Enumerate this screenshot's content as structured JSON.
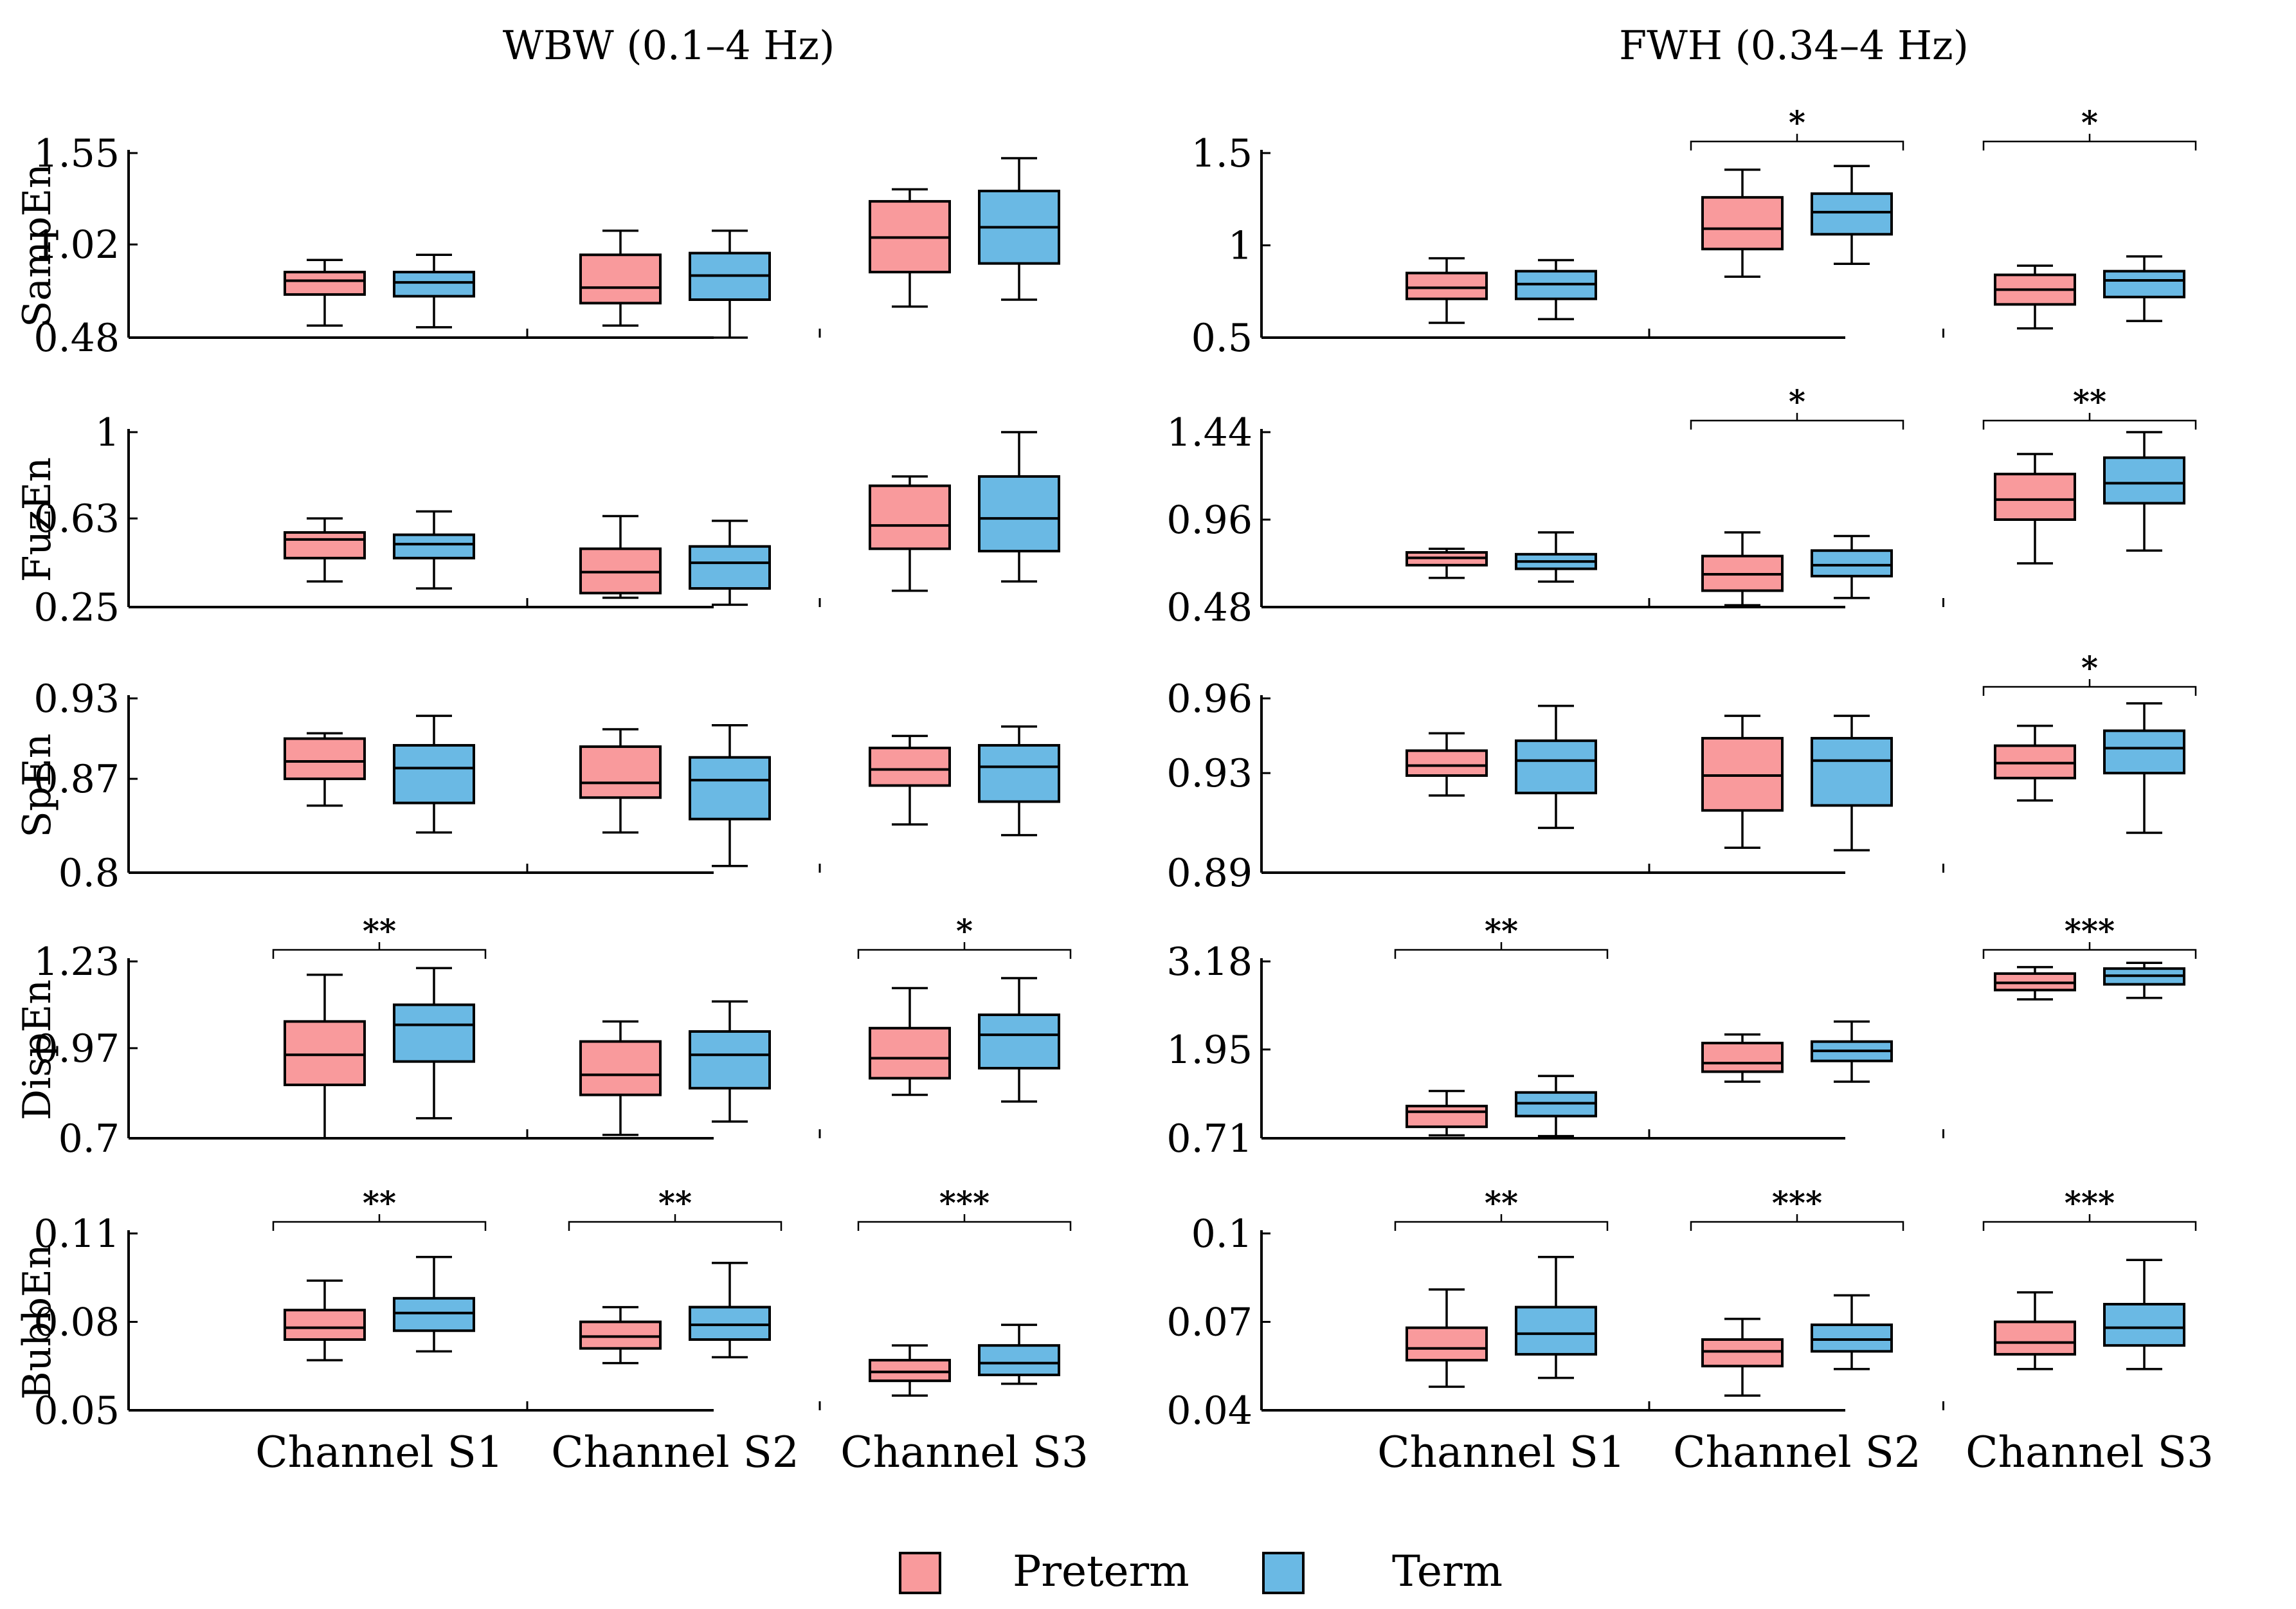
{
  "figure": {
    "column_titles": [
      "WBW (0.1–4 Hz)",
      "FWH (0.34–4 Hz)"
    ],
    "x_categories": [
      "Channel S1",
      "Channel S2",
      "Channel S3"
    ],
    "legend": [
      {
        "label": "Preterm",
        "color": "#f99a9c"
      },
      {
        "label": "Term",
        "color": "#6ab9e4"
      }
    ]
  },
  "chart_data": [
    {
      "type": "box",
      "column": "WBW (0.1–4 Hz)",
      "ylabel": "SampEn",
      "yticks": [
        "0.48",
        "1.02",
        "1.55"
      ],
      "ylim": [
        0.48,
        1.55
      ],
      "categories": [
        "Channel S1",
        "Channel S2",
        "Channel S3"
      ],
      "series": [
        {
          "name": "Preterm",
          "boxes": [
            [
              0.55,
              0.73,
              0.81,
              0.86,
              0.93
            ],
            [
              0.55,
              0.68,
              0.77,
              0.96,
              1.1
            ],
            [
              0.66,
              0.86,
              1.06,
              1.27,
              1.34
            ]
          ]
        },
        {
          "name": "Term",
          "boxes": [
            [
              0.54,
              0.72,
              0.8,
              0.86,
              0.96
            ],
            [
              0.48,
              0.7,
              0.84,
              0.97,
              1.1
            ],
            [
              0.7,
              0.91,
              1.12,
              1.33,
              1.52
            ]
          ]
        }
      ],
      "significance": [
        "",
        "",
        ""
      ]
    },
    {
      "type": "box",
      "column": "WBW (0.1–4 Hz)",
      "ylabel": "FuzEn",
      "yticks": [
        "0.25",
        "0.63",
        "1"
      ],
      "ylim": [
        0.25,
        1.0
      ],
      "categories": [
        "Channel S1",
        "Channel S2",
        "Channel S3"
      ],
      "series": [
        {
          "name": "Preterm",
          "boxes": [
            [
              0.36,
              0.46,
              0.54,
              0.57,
              0.63
            ],
            [
              0.29,
              0.31,
              0.4,
              0.5,
              0.64
            ],
            [
              0.32,
              0.5,
              0.6,
              0.77,
              0.81
            ]
          ]
        },
        {
          "name": "Term",
          "boxes": [
            [
              0.33,
              0.46,
              0.52,
              0.56,
              0.66
            ],
            [
              0.26,
              0.33,
              0.44,
              0.51,
              0.62
            ],
            [
              0.36,
              0.49,
              0.63,
              0.81,
              1.0
            ]
          ]
        }
      ],
      "significance": [
        "",
        "",
        ""
      ]
    },
    {
      "type": "box",
      "column": "WBW (0.1–4 Hz)",
      "ylabel": "SpEn",
      "yticks": [
        "0.8",
        "0.87",
        "0.93"
      ],
      "ylim": [
        0.8,
        0.93
      ],
      "categories": [
        "Channel S1",
        "Channel S2",
        "Channel S3"
      ],
      "series": [
        {
          "name": "Preterm",
          "boxes": [
            [
              0.85,
              0.87,
              0.883,
              0.9,
              0.904
            ],
            [
              0.83,
              0.856,
              0.867,
              0.894,
              0.907
            ],
            [
              0.836,
              0.865,
              0.877,
              0.893,
              0.902
            ]
          ]
        },
        {
          "name": "Term",
          "boxes": [
            [
              0.83,
              0.852,
              0.878,
              0.895,
              0.917
            ],
            [
              0.805,
              0.84,
              0.869,
              0.886,
              0.91
            ],
            [
              0.828,
              0.853,
              0.879,
              0.895,
              0.909
            ]
          ]
        }
      ],
      "significance": [
        "",
        "",
        ""
      ]
    },
    {
      "type": "box",
      "column": "WBW (0.1–4 Hz)",
      "ylabel": "DispEn",
      "yticks": [
        "0.7",
        "0.97",
        "1.23"
      ],
      "ylim": [
        0.7,
        1.23
      ],
      "categories": [
        "Channel S1",
        "Channel S2",
        "Channel S3"
      ],
      "series": [
        {
          "name": "Preterm",
          "boxes": [
            [
              0.7,
              0.86,
              0.95,
              1.05,
              1.19
            ],
            [
              0.71,
              0.83,
              0.89,
              0.99,
              1.05
            ],
            [
              0.83,
              0.88,
              0.94,
              1.03,
              1.15
            ]
          ]
        },
        {
          "name": "Term",
          "boxes": [
            [
              0.76,
              0.93,
              1.04,
              1.1,
              1.21
            ],
            [
              0.75,
              0.85,
              0.95,
              1.02,
              1.11
            ],
            [
              0.81,
              0.91,
              1.01,
              1.07,
              1.18
            ]
          ]
        }
      ],
      "significance": [
        "**",
        "",
        "*"
      ]
    },
    {
      "type": "box",
      "column": "WBW (0.1–4 Hz)",
      "ylabel": "BubbEn",
      "yticks": [
        "0.05",
        "0.08",
        "0.11"
      ],
      "ylim": [
        0.05,
        0.11
      ],
      "categories": [
        "Channel S1",
        "Channel S2",
        "Channel S3"
      ],
      "series": [
        {
          "name": "Preterm",
          "boxes": [
            [
              0.067,
              0.074,
              0.078,
              0.084,
              0.094
            ],
            [
              0.066,
              0.071,
              0.075,
              0.08,
              0.085
            ],
            [
              0.055,
              0.06,
              0.063,
              0.067,
              0.072
            ]
          ]
        },
        {
          "name": "Term",
          "boxes": [
            [
              0.07,
              0.077,
              0.083,
              0.088,
              0.102
            ],
            [
              0.068,
              0.074,
              0.079,
              0.085,
              0.1
            ],
            [
              0.059,
              0.062,
              0.066,
              0.072,
              0.079
            ]
          ]
        }
      ],
      "significance": [
        "**",
        "**",
        "***"
      ]
    },
    {
      "type": "box",
      "column": "FWH (0.34–4 Hz)",
      "ylabel": "",
      "yticks": [
        "0.5",
        "1",
        "1.5"
      ],
      "ylim": [
        0.5,
        1.5
      ],
      "categories": [
        "Channel S1",
        "Channel S2",
        "Channel S3"
      ],
      "series": [
        {
          "name": "Preterm",
          "boxes": [
            [
              0.58,
              0.71,
              0.77,
              0.85,
              0.93
            ],
            [
              0.83,
              0.98,
              1.09,
              1.26,
              1.41
            ],
            [
              0.55,
              0.68,
              0.76,
              0.84,
              0.89
            ]
          ]
        },
        {
          "name": "Term",
          "boxes": [
            [
              0.6,
              0.71,
              0.79,
              0.86,
              0.92
            ],
            [
              0.9,
              1.06,
              1.18,
              1.28,
              1.43
            ],
            [
              0.59,
              0.72,
              0.81,
              0.86,
              0.94
            ]
          ]
        }
      ],
      "significance": [
        "",
        "*",
        "*"
      ]
    },
    {
      "type": "box",
      "column": "FWH (0.34–4 Hz)",
      "ylabel": "",
      "yticks": [
        "0.48",
        "0.96",
        "1.44"
      ],
      "ylim": [
        0.48,
        1.44
      ],
      "categories": [
        "Channel S1",
        "Channel S2",
        "Channel S3"
      ],
      "series": [
        {
          "name": "Preterm",
          "boxes": [
            [
              0.64,
              0.71,
              0.75,
              0.78,
              0.8
            ],
            [
              0.49,
              0.57,
              0.66,
              0.76,
              0.89
            ],
            [
              0.72,
              0.96,
              1.07,
              1.21,
              1.32
            ]
          ]
        },
        {
          "name": "Term",
          "boxes": [
            [
              0.62,
              0.69,
              0.73,
              0.77,
              0.89
            ],
            [
              0.53,
              0.65,
              0.71,
              0.79,
              0.87
            ],
            [
              0.79,
              1.05,
              1.16,
              1.3,
              1.44
            ]
          ]
        }
      ],
      "significance": [
        "",
        "*",
        "**"
      ]
    },
    {
      "type": "box",
      "column": "FWH (0.34–4 Hz)",
      "ylabel": "",
      "yticks": [
        "0.89",
        "0.93",
        "0.96"
      ],
      "ylim": [
        0.89,
        0.96
      ],
      "categories": [
        "Channel S1",
        "Channel S2",
        "Channel S3"
      ],
      "series": [
        {
          "name": "Preterm",
          "boxes": [
            [
              0.921,
              0.929,
              0.933,
              0.939,
              0.946
            ],
            [
              0.9,
              0.915,
              0.929,
              0.944,
              0.953
            ],
            [
              0.919,
              0.928,
              0.934,
              0.941,
              0.949
            ]
          ]
        },
        {
          "name": "Term",
          "boxes": [
            [
              0.908,
              0.922,
              0.935,
              0.943,
              0.957
            ],
            [
              0.899,
              0.917,
              0.935,
              0.944,
              0.953
            ],
            [
              0.906,
              0.93,
              0.94,
              0.947,
              0.958
            ]
          ]
        }
      ],
      "significance": [
        "",
        "",
        "*"
      ]
    },
    {
      "type": "box",
      "column": "FWH (0.34–4 Hz)",
      "ylabel": "",
      "yticks": [
        "0.71",
        "1.95",
        "3.18"
      ],
      "ylim": [
        0.71,
        3.18
      ],
      "categories": [
        "Channel S1",
        "Channel S2",
        "Channel S3"
      ],
      "series": [
        {
          "name": "Preterm",
          "boxes": [
            [
              0.75,
              0.87,
              1.08,
              1.16,
              1.37
            ],
            [
              1.5,
              1.64,
              1.76,
              2.04,
              2.16
            ],
            [
              2.65,
              2.78,
              2.88,
              3.01,
              3.1
            ]
          ]
        },
        {
          "name": "Term",
          "boxes": [
            [
              0.74,
              1.02,
              1.2,
              1.35,
              1.58
            ],
            [
              1.5,
              1.79,
              1.93,
              2.06,
              2.34
            ],
            [
              2.67,
              2.86,
              2.98,
              3.08,
              3.16
            ]
          ]
        }
      ],
      "significance": [
        "**",
        "",
        "***"
      ]
    },
    {
      "type": "box",
      "column": "FWH (0.34–4 Hz)",
      "ylabel": "",
      "yticks": [
        "0.04",
        "0.07",
        "0.1"
      ],
      "ylim": [
        0.04,
        0.1
      ],
      "categories": [
        "Channel S1",
        "Channel S2",
        "Channel S3"
      ],
      "series": [
        {
          "name": "Preterm",
          "boxes": [
            [
              0.048,
              0.057,
              0.061,
              0.068,
              0.081
            ],
            [
              0.045,
              0.055,
              0.06,
              0.064,
              0.071
            ],
            [
              0.054,
              0.059,
              0.063,
              0.07,
              0.08
            ]
          ]
        },
        {
          "name": "Term",
          "boxes": [
            [
              0.051,
              0.059,
              0.066,
              0.075,
              0.092
            ],
            [
              0.054,
              0.06,
              0.064,
              0.069,
              0.079
            ],
            [
              0.054,
              0.062,
              0.068,
              0.076,
              0.091
            ]
          ]
        }
      ],
      "significance": [
        "**",
        "***",
        "***"
      ]
    }
  ]
}
